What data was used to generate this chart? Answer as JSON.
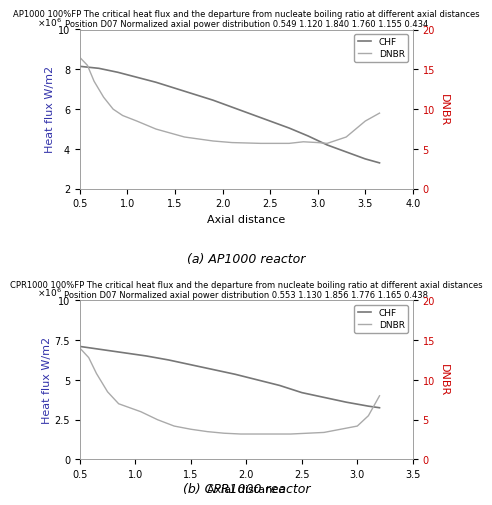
{
  "ap1000": {
    "title_line1": "AP1000 100%FP The critical heat flux and the departure from nucleate boiling ratio at different axial distances",
    "title_line2": "Position D07 Normalized axial power distribution 0.549 1.120 1.840 1.760 1.155 0.434",
    "xlabel": "Axial distance",
    "ylabel_left": "Heat flux W/m2",
    "ylabel_right": "DNBR",
    "xlim": [
      0.5,
      4.0
    ],
    "ylim_left": [
      2000000,
      10000000
    ],
    "ylim_right": [
      0,
      20
    ],
    "yticks_left": [
      2000000,
      4000000,
      6000000,
      8000000,
      10000000
    ],
    "ytick_labels_left": [
      "2",
      "4",
      "6",
      "8",
      "10"
    ],
    "yticks_right": [
      0,
      5,
      10,
      15,
      20
    ],
    "xticks": [
      0.5,
      1.0,
      1.5,
      2.0,
      2.5,
      3.0,
      3.5,
      4.0
    ],
    "chf_x": [
      0.5,
      0.7,
      0.9,
      1.1,
      1.3,
      1.5,
      1.7,
      1.9,
      2.1,
      2.3,
      2.5,
      2.7,
      2.9,
      3.1,
      3.3,
      3.5,
      3.65
    ],
    "chf_y": [
      8150000,
      8050000,
      7850000,
      7600000,
      7350000,
      7050000,
      6750000,
      6450000,
      6100000,
      5750000,
      5400000,
      5050000,
      4650000,
      4200000,
      3850000,
      3500000,
      3300000
    ],
    "dnbr_x": [
      0.5,
      0.58,
      0.65,
      0.75,
      0.85,
      0.95,
      1.1,
      1.3,
      1.6,
      1.9,
      2.1,
      2.4,
      2.7,
      2.85,
      3.0,
      3.1,
      3.3,
      3.5,
      3.65
    ],
    "dnbr_y": [
      16.5,
      15.5,
      13.5,
      11.5,
      10.0,
      9.2,
      8.5,
      7.5,
      6.5,
      6.0,
      5.8,
      5.7,
      5.7,
      5.9,
      5.8,
      5.7,
      6.5,
      8.5,
      9.5
    ],
    "caption": "(a) AP1000 reactor"
  },
  "cpr1000": {
    "title_line1": "CPR1000 100%FP The critical heat flux and the departure from nucleate boiling ratio at different axial distances",
    "title_line2": "Position D07 Normalized axial power distribution 0.553 1.130 1.856 1.776 1.165 0.438",
    "xlabel": "Axial distance",
    "ylabel_left": "Heat flux W/m2",
    "ylabel_right": "DNBR",
    "xlim": [
      0.5,
      3.5
    ],
    "ylim_left": [
      0,
      10000000
    ],
    "ylim_right": [
      0,
      20
    ],
    "yticks_left": [
      0,
      2500000,
      5000000,
      7500000,
      10000000
    ],
    "ytick_labels_left": [
      "0",
      "2.5",
      "5",
      "7.5",
      "10"
    ],
    "yticks_right": [
      0,
      5,
      10,
      15,
      20
    ],
    "xticks": [
      0.5,
      1.0,
      1.5,
      2.0,
      2.5,
      3.0,
      3.5
    ],
    "chf_x": [
      0.5,
      0.7,
      0.9,
      1.0,
      1.1,
      1.3,
      1.5,
      1.7,
      1.9,
      2.1,
      2.3,
      2.5,
      2.7,
      2.9,
      3.1,
      3.2
    ],
    "chf_y": [
      7100000,
      6900000,
      6700000,
      6600000,
      6500000,
      6250000,
      5950000,
      5650000,
      5350000,
      5000000,
      4650000,
      4200000,
      3900000,
      3600000,
      3350000,
      3250000
    ],
    "dnbr_x": [
      0.5,
      0.58,
      0.65,
      0.75,
      0.85,
      0.95,
      1.05,
      1.2,
      1.35,
      1.5,
      1.65,
      1.8,
      1.95,
      2.1,
      2.25,
      2.4,
      2.55,
      2.7,
      2.85,
      3.0,
      3.1,
      3.2
    ],
    "dnbr_y": [
      14.0,
      12.8,
      10.8,
      8.5,
      7.0,
      6.5,
      6.0,
      5.0,
      4.2,
      3.8,
      3.5,
      3.3,
      3.2,
      3.2,
      3.2,
      3.2,
      3.3,
      3.4,
      3.8,
      4.2,
      5.5,
      8.0
    ],
    "caption": "(b) CPR1000 reactor"
  },
  "chf_color": "#777777",
  "dnbr_color": "#aaaaaa",
  "left_label_color": "#3333aa",
  "right_label_color": "#cc0000",
  "background": "#ffffff",
  "legend_labels": [
    "CHF",
    "DNBR"
  ],
  "title_fontsize": 6.0,
  "ylabel_fontsize": 8,
  "xlabel_fontsize": 8,
  "tick_fontsize": 7,
  "caption_fontsize": 9
}
